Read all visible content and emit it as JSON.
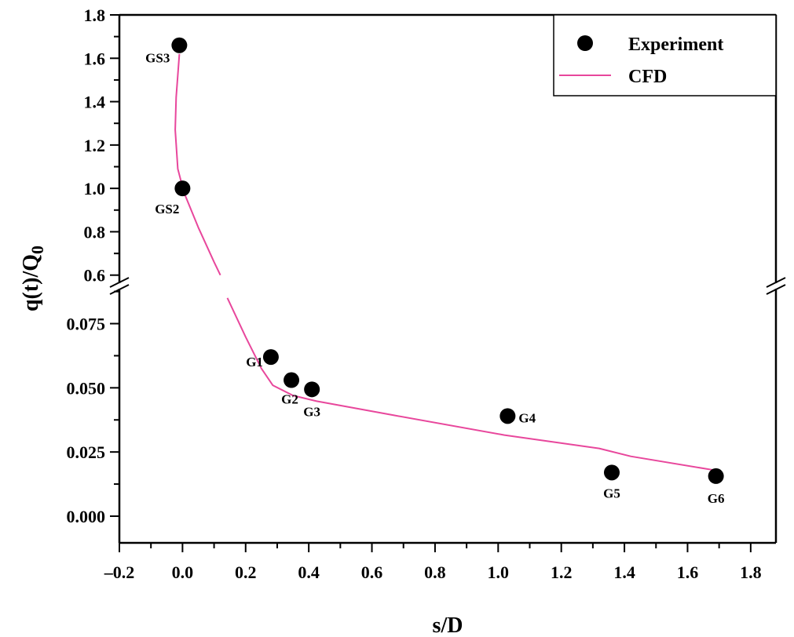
{
  "chart_data": {
    "type": "scatter",
    "title": "",
    "xlabel": "s/D",
    "ylabel": "q(t)/Q0",
    "ylabel_main": "q(t)/Q",
    "ylabel_sub": "0",
    "xlim": [
      -0.2,
      1.88
    ],
    "ylim_upper": [
      0.57,
      1.8
    ],
    "ylim_lower": [
      -0.0104,
      0.088
    ],
    "y_axis_break": true,
    "grid": false,
    "legend_position": "top-right",
    "x_ticks": [
      "-0.2",
      "0.0",
      "0.2",
      "0.4",
      "0.6",
      "0.8",
      "1.0",
      "1.2",
      "1.4",
      "1.6",
      "1.8"
    ],
    "x_tick_values": [
      -0.2,
      0,
      0.2,
      0.4,
      0.6,
      0.8,
      1.0,
      1.2,
      1.4,
      1.6,
      1.8
    ],
    "y_ticks_upper": [
      "0.6",
      "0.8",
      "1.0",
      "1.2",
      "1.4",
      "1.6",
      "1.8"
    ],
    "y_tick_values_upper": [
      0.6,
      0.8,
      1.0,
      1.2,
      1.4,
      1.6,
      1.8
    ],
    "y_ticks_lower": [
      "0.000",
      "0.025",
      "0.050",
      "0.075"
    ],
    "y_tick_values_lower": [
      0,
      0.025,
      0.05,
      0.075
    ],
    "legend": [
      {
        "name": "Experiment",
        "marker": "circle",
        "color": "#000000"
      },
      {
        "name": "CFD",
        "marker": "line",
        "color": "#e8479c"
      }
    ],
    "series": [
      {
        "name": "Experiment",
        "type": "scatter",
        "color": "#000000",
        "points": [
          {
            "label": "GS3",
            "x": -0.01,
            "y": 1.66
          },
          {
            "label": "GS2",
            "x": 0.0,
            "y": 1.0
          },
          {
            "label": "G1",
            "x": 0.28,
            "y": 0.062
          },
          {
            "label": "G2",
            "x": 0.345,
            "y": 0.053
          },
          {
            "label": "G3",
            "x": 0.41,
            "y": 0.0494
          },
          {
            "label": "G4",
            "x": 1.03,
            "y": 0.039
          },
          {
            "label": "G5",
            "x": 1.36,
            "y": 0.017
          },
          {
            "label": "G6",
            "x": 1.69,
            "y": 0.0156
          }
        ]
      },
      {
        "name": "CFD",
        "type": "line",
        "color": "#e8479c",
        "upper_x": [
          -0.01,
          -0.02,
          -0.023,
          -0.015,
          0.005,
          0.05,
          0.1,
          0.12
        ],
        "upper_y": [
          1.62,
          1.42,
          1.27,
          1.09,
          0.98,
          0.82,
          0.66,
          0.6
        ],
        "lower_x": [
          0.142,
          0.2,
          0.25,
          0.286,
          0.35,
          0.425,
          0.67,
          1.02,
          1.32,
          1.42,
          1.69
        ],
        "lower_y": [
          0.085,
          0.0698,
          0.0575,
          0.051,
          0.047,
          0.0448,
          0.0393,
          0.0316,
          0.0264,
          0.0233,
          0.0178
        ]
      }
    ]
  }
}
